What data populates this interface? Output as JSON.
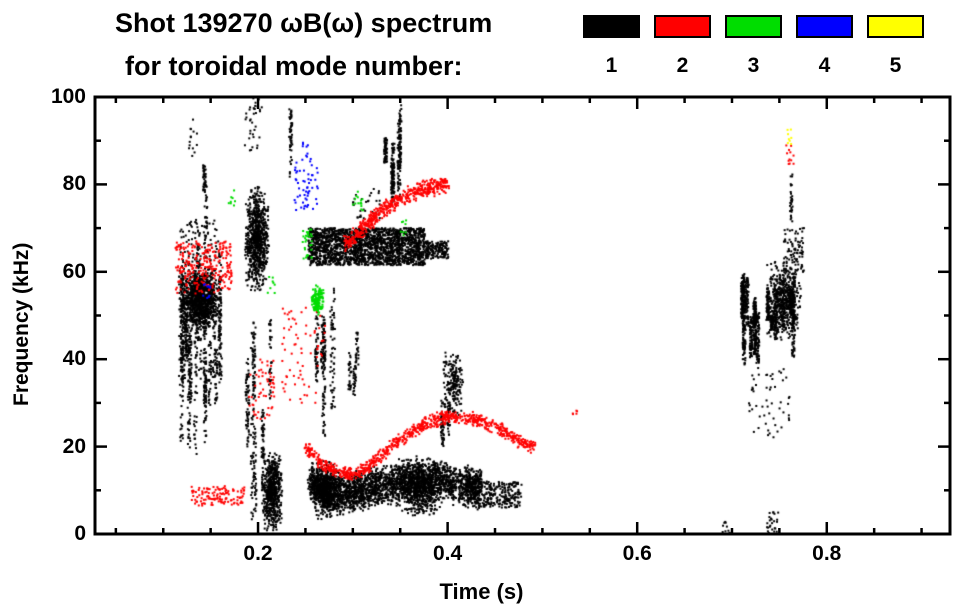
{
  "chart_data": {
    "type": "scatter",
    "title": "Shot 139270 ωB(ω) spectrum",
    "subtitle": "for toroidal mode number:",
    "xlabel": "Time (s)",
    "ylabel": "Frequency (kHz)",
    "xlim": [
      0.028,
      0.93
    ],
    "ylim": [
      0,
      100
    ],
    "x_minor_step": 0.05,
    "y_minor_step": 10,
    "grid": false,
    "legend_position": "top-right",
    "xticks": [
      {
        "v": 0.2,
        "label": "0.2"
      },
      {
        "v": 0.4,
        "label": "0.4"
      },
      {
        "v": 0.6,
        "label": "0.6"
      },
      {
        "v": 0.8,
        "label": "0.8"
      }
    ],
    "yticks": [
      {
        "v": 0,
        "label": "0"
      },
      {
        "v": 20,
        "label": "20"
      },
      {
        "v": 40,
        "label": "40"
      },
      {
        "v": 60,
        "label": "60"
      },
      {
        "v": 80,
        "label": "80"
      },
      {
        "v": 100,
        "label": "100"
      }
    ],
    "modes": [
      {
        "mode": 1,
        "label": "1",
        "color": "#000000"
      },
      {
        "mode": 2,
        "label": "2",
        "color": "#ff0000"
      },
      {
        "mode": 3,
        "label": "3",
        "color": "#00dd00"
      },
      {
        "mode": 4,
        "label": "4",
        "color": "#0000ff"
      },
      {
        "mode": 5,
        "label": "5",
        "color": "#ffff00"
      }
    ],
    "clusters": [
      {
        "mode": 1,
        "shape": "blob",
        "t": [
          0.118,
          0.16
        ],
        "f": [
          46,
          61
        ],
        "n": 1100
      },
      {
        "mode": 1,
        "shape": "vstreaks",
        "t": [
          0.116,
          0.163
        ],
        "f": [
          17,
          66
        ],
        "lines": 24,
        "n": 850
      },
      {
        "mode": 1,
        "shape": "vstreaks",
        "t": [
          0.143,
          0.149
        ],
        "f": [
          58,
          97
        ],
        "lines": 2,
        "n": 70
      },
      {
        "mode": 1,
        "shape": "scatter",
        "t": [
          0.118,
          0.158
        ],
        "f": [
          61,
          72
        ],
        "n": 90
      },
      {
        "mode": 1,
        "shape": "scatter",
        "t": [
          0.126,
          0.136
        ],
        "f": [
          86,
          95
        ],
        "n": 14
      },
      {
        "mode": 1,
        "shape": "blob",
        "t": [
          0.186,
          0.212
        ],
        "f": [
          55,
          80
        ],
        "n": 800
      },
      {
        "mode": 1,
        "shape": "vstreaks",
        "t": [
          0.188,
          0.214
        ],
        "f": [
          3,
          55
        ],
        "lines": 9,
        "n": 300
      },
      {
        "mode": 1,
        "shape": "scatter",
        "t": [
          0.186,
          0.206
        ],
        "f": [
          87,
          100
        ],
        "n": 35
      },
      {
        "mode": 1,
        "shape": "blob",
        "t": [
          0.204,
          0.226
        ],
        "f": [
          0.5,
          19
        ],
        "n": 600
      },
      {
        "mode": 1,
        "shape": "vstreaks",
        "t": [
          0.233,
          0.239
        ],
        "f": [
          78,
          100
        ],
        "lines": 2,
        "n": 50
      },
      {
        "mode": 1,
        "shape": "band",
        "t": [
          0.253,
          0.376
        ],
        "f": [
          61.5,
          70
        ],
        "n": 2000
      },
      {
        "mode": 1,
        "shape": "band",
        "t": [
          0.376,
          0.401
        ],
        "f": [
          63,
          67
        ],
        "n": 160
      },
      {
        "mode": 1,
        "shape": "vstreaks",
        "t": [
          0.252,
          0.281
        ],
        "f": [
          18,
          60
        ],
        "lines": 8,
        "n": 240
      },
      {
        "mode": 1,
        "shape": "vstreaks",
        "t": [
          0.295,
          0.306
        ],
        "f": [
          20,
          55
        ],
        "lines": 3,
        "n": 80
      },
      {
        "mode": 1,
        "shape": "vstreaks",
        "t": [
          0.334,
          0.356
        ],
        "f": [
          68,
          100
        ],
        "lines": 5,
        "n": 300
      },
      {
        "mode": 1,
        "shape": "scatter",
        "t": [
          0.3,
          0.335
        ],
        "f": [
          71,
          79
        ],
        "n": 30
      },
      {
        "mode": 1,
        "shape": "curve",
        "pts": [
          [
            0.254,
            12
          ],
          [
            0.27,
            10
          ],
          [
            0.29,
            9
          ],
          [
            0.31,
            10
          ],
          [
            0.33,
            11
          ],
          [
            0.355,
            12
          ],
          [
            0.39,
            12
          ],
          [
            0.42,
            11
          ],
          [
            0.435,
            10
          ]
        ],
        "thick": 5,
        "n": 2600
      },
      {
        "mode": 1,
        "shape": "blob",
        "t": [
          0.258,
          0.287
        ],
        "f": [
          3,
          17
        ],
        "n": 450
      },
      {
        "mode": 1,
        "shape": "blob",
        "t": [
          0.344,
          0.397
        ],
        "f": [
          4,
          18
        ],
        "n": 650
      },
      {
        "mode": 1,
        "shape": "scatter",
        "t": [
          0.435,
          0.478
        ],
        "f": [
          6,
          12
        ],
        "n": 220
      },
      {
        "mode": 1,
        "shape": "vstreaks",
        "t": [
          0.394,
          0.412
        ],
        "f": [
          19,
          44
        ],
        "lines": 4,
        "n": 100
      },
      {
        "mode": 1,
        "shape": "blob",
        "t": [
          0.397,
          0.417
        ],
        "f": [
          27,
          42
        ],
        "n": 170
      },
      {
        "mode": 1,
        "shape": "vstreaks",
        "t": [
          0.705,
          0.776
        ],
        "f": [
          38,
          60
        ],
        "lines": 16,
        "n": 1050
      },
      {
        "mode": 1,
        "shape": "blob",
        "t": [
          0.735,
          0.773
        ],
        "f": [
          44,
          63
        ],
        "n": 550
      },
      {
        "mode": 1,
        "shape": "scatter",
        "t": [
          0.754,
          0.776
        ],
        "f": [
          60,
          70
        ],
        "n": 90
      },
      {
        "mode": 1,
        "shape": "vstreaks",
        "t": [
          0.762,
          0.767
        ],
        "f": [
          68,
          90
        ],
        "lines": 1,
        "n": 30
      },
      {
        "mode": 1,
        "shape": "scatter",
        "t": [
          0.718,
          0.762
        ],
        "f": [
          22,
          38
        ],
        "n": 55
      },
      {
        "mode": 1,
        "shape": "scatter",
        "t": [
          0.737,
          0.749
        ],
        "f": [
          0,
          5
        ],
        "n": 25
      },
      {
        "mode": 1,
        "shape": "scatter",
        "t": [
          0.69,
          0.698
        ],
        "f": [
          0,
          4
        ],
        "n": 10
      },
      {
        "mode": 2,
        "shape": "scatter",
        "t": [
          0.113,
          0.172
        ],
        "f": [
          55,
          67
        ],
        "n": 270
      },
      {
        "mode": 2,
        "shape": "scatter",
        "t": [
          0.13,
          0.186
        ],
        "f": [
          6.5,
          11
        ],
        "n": 120
      },
      {
        "mode": 2,
        "shape": "scatter",
        "t": [
          0.19,
          0.218
        ],
        "f": [
          26,
          40
        ],
        "n": 55
      },
      {
        "mode": 2,
        "shape": "scatter",
        "t": [
          0.224,
          0.271
        ],
        "f": [
          30,
          52
        ],
        "n": 70
      },
      {
        "mode": 2,
        "shape": "curve",
        "pts": [
          [
            0.291,
            66
          ],
          [
            0.311,
            70
          ],
          [
            0.331,
            74
          ],
          [
            0.351,
            77
          ],
          [
            0.376,
            79
          ],
          [
            0.401,
            80
          ]
        ],
        "thick": 2.2,
        "n": 520
      },
      {
        "mode": 2,
        "shape": "curve",
        "pts": [
          [
            0.25,
            20
          ],
          [
            0.268,
            16
          ],
          [
            0.286,
            14
          ],
          [
            0.306,
            14
          ],
          [
            0.326,
            17
          ],
          [
            0.346,
            21
          ],
          [
            0.366,
            24
          ],
          [
            0.386,
            26
          ],
          [
            0.406,
            27
          ],
          [
            0.431,
            26
          ],
          [
            0.456,
            24
          ],
          [
            0.476,
            21
          ],
          [
            0.491,
            20
          ]
        ],
        "thick": 1.8,
        "n": 880
      },
      {
        "mode": 2,
        "shape": "scatter",
        "t": [
          0.532,
          0.537
        ],
        "f": [
          27,
          29
        ],
        "n": 5
      },
      {
        "mode": 2,
        "shape": "scatter",
        "t": [
          0.757,
          0.765
        ],
        "f": [
          84,
          89
        ],
        "n": 12
      },
      {
        "mode": 3,
        "shape": "blob",
        "t": [
          0.256,
          0.27
        ],
        "f": [
          50,
          57
        ],
        "n": 140
      },
      {
        "mode": 3,
        "shape": "scatter",
        "t": [
          0.247,
          0.257
        ],
        "f": [
          63,
          70
        ],
        "n": 30
      },
      {
        "mode": 3,
        "shape": "scatter",
        "t": [
          0.3,
          0.311
        ],
        "f": [
          74,
          79
        ],
        "n": 15
      },
      {
        "mode": 3,
        "shape": "scatter",
        "t": [
          0.168,
          0.176
        ],
        "f": [
          75,
          79
        ],
        "n": 8
      },
      {
        "mode": 3,
        "shape": "scatter",
        "t": [
          0.21,
          0.219
        ],
        "f": [
          55,
          60
        ],
        "n": 8
      },
      {
        "mode": 3,
        "shape": "scatter",
        "t": [
          0.35,
          0.359
        ],
        "f": [
          68,
          72
        ],
        "n": 8
      },
      {
        "mode": 4,
        "shape": "scatter",
        "t": [
          0.238,
          0.263
        ],
        "f": [
          74,
          86
        ],
        "n": 55
      },
      {
        "mode": 4,
        "shape": "scatter",
        "t": [
          0.245,
          0.253
        ],
        "f": [
          86,
          90
        ],
        "n": 8
      },
      {
        "mode": 4,
        "shape": "scatter",
        "t": [
          0.142,
          0.151
        ],
        "f": [
          54,
          59
        ],
        "n": 10
      },
      {
        "mode": 5,
        "shape": "scatter",
        "t": [
          0.758,
          0.764
        ],
        "f": [
          89,
          93
        ],
        "n": 8
      }
    ]
  },
  "colors": {
    "background": "#ffffff",
    "foreground": "#000000"
  }
}
